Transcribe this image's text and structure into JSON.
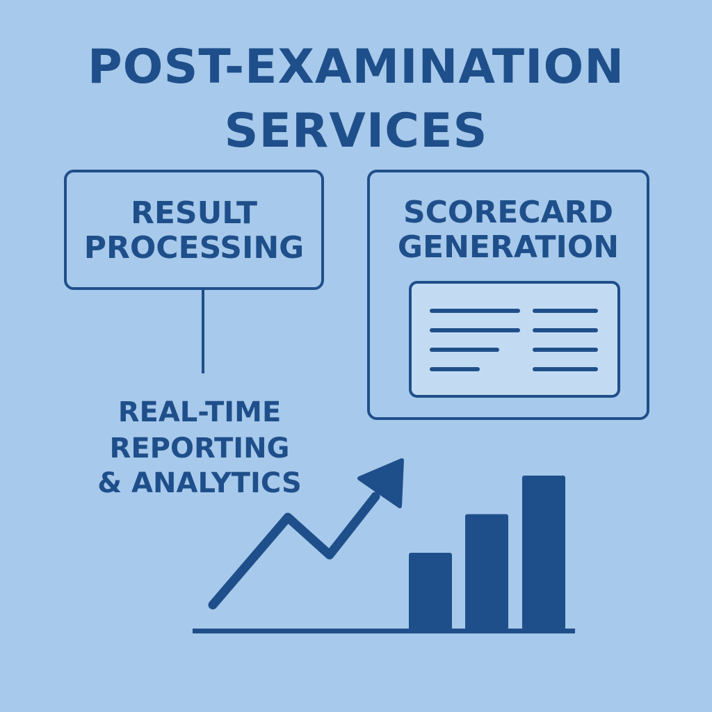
{
  "title": {
    "line1": "POST-EXAMINATION",
    "line2": "SERVICES"
  },
  "result_processing": {
    "line1": "RESULT",
    "line2": "PROCESSING"
  },
  "scorecard_generation": {
    "line1": "SCORECARD",
    "line2": "GENERATION"
  },
  "reporting": {
    "line1": "REAL-TIME",
    "line2": "REPORTING",
    "line3": "& ANALYTICS"
  },
  "colors": {
    "background": "#a7c9eb",
    "primary": "#1f4f8a",
    "card_fill": "#c3dbf2"
  },
  "icons": [
    "scorecard-document-icon",
    "trend-arrow-icon",
    "bar-chart-icon"
  ],
  "bar_chart": {
    "values": [
      3,
      4.5,
      6
    ]
  }
}
